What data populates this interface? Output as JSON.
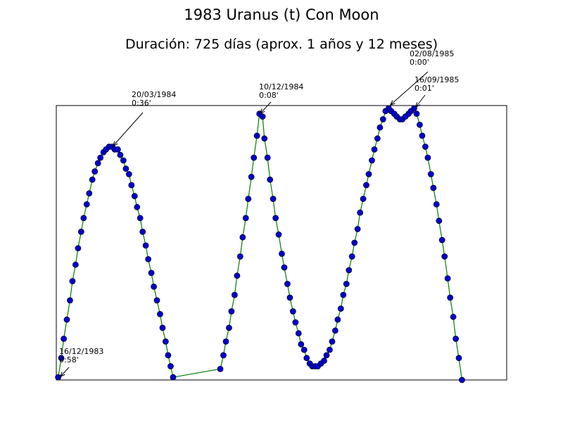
{
  "chart_data": {
    "type": "line",
    "title": "1983 Uranus (t) Con Moon",
    "subtitle": "Duración: 725 días (aprox. 1 años y 12 meses)",
    "x": [
      3,
      8,
      12,
      17,
      22,
      26,
      31,
      35,
      40,
      44,
      49,
      53,
      58,
      62,
      67,
      71,
      76,
      80,
      85,
      90,
      94,
      99,
      103,
      108,
      112,
      117,
      121,
      126,
      130,
      135,
      139,
      144,
      148,
      153,
      157,
      162,
      167,
      171,
      176,
      180,
      184,
      188,
      264,
      269,
      273,
      278,
      282,
      287,
      291,
      296,
      300,
      305,
      309,
      314,
      318,
      323,
      327,
      332,
      335,
      340,
      344,
      349,
      353,
      358,
      363,
      367,
      372,
      376,
      381,
      385,
      390,
      394,
      399,
      403,
      408,
      412,
      417,
      421,
      426,
      431,
      435,
      440,
      444,
      449,
      453,
      458,
      462,
      467,
      471,
      476,
      480,
      485,
      489,
      494,
      499,
      503,
      508,
      512,
      517,
      521,
      526,
      530,
      535,
      539,
      544,
      548,
      553,
      557,
      562,
      567,
      571,
      576,
      580,
      585,
      589,
      594,
      598,
      603,
      607,
      612,
      616,
      621,
      625,
      630,
      634,
      639,
      643,
      648,
      653
    ],
    "values": [
      1,
      8,
      15,
      22,
      29,
      36,
      42,
      48,
      54,
      59,
      64,
      68,
      73,
      76,
      79,
      81,
      83,
      84,
      85,
      85,
      84,
      84,
      82,
      80,
      77,
      75,
      71,
      67,
      63,
      59,
      54,
      49,
      44,
      39,
      34,
      29,
      24,
      19,
      14,
      9,
      5,
      1,
      4,
      9,
      14,
      19,
      25,
      31,
      38,
      45,
      52,
      59,
      66,
      74,
      81,
      89,
      97,
      96,
      88,
      81,
      73,
      66,
      59,
      53,
      46,
      41,
      35,
      30,
      25,
      21,
      17,
      13,
      11,
      8,
      6,
      5,
      5,
      5,
      6,
      7,
      9,
      11,
      14,
      18,
      22,
      26,
      31,
      35,
      40,
      45,
      50,
      55,
      61,
      66,
      71,
      75,
      80,
      84,
      88,
      92,
      95,
      98,
      99,
      98,
      97,
      96,
      95,
      95,
      96,
      97,
      98,
      99,
      97,
      93,
      89,
      85,
      81,
      75,
      70,
      64,
      58,
      51,
      45,
      37,
      30,
      23,
      15,
      8,
      0
    ],
    "line_color": "#008000",
    "marker_color": "#0000cc",
    "xlim": [
      0,
      725
    ],
    "ylim": [
      0,
      100
    ],
    "annotations": [
      {
        "date": "16/12/1983",
        "value": "0:58'"
      },
      {
        "date": "20/03/1984",
        "value": "0:36'"
      },
      {
        "date": "10/12/1984",
        "value": "0:08'"
      },
      {
        "date": "02/08/1985",
        "value": "0:00'"
      },
      {
        "date": "16/09/1985",
        "value": "0:01'"
      }
    ]
  }
}
